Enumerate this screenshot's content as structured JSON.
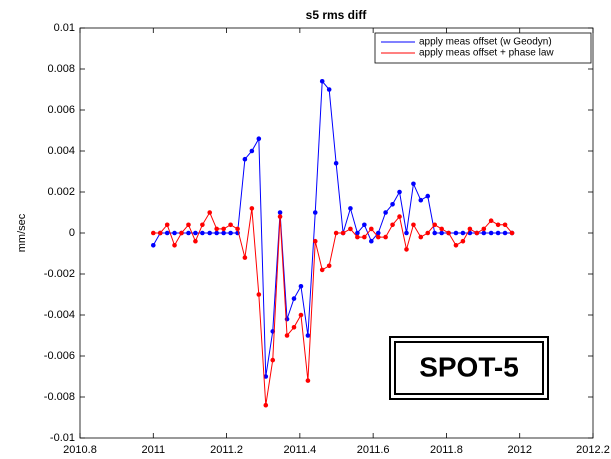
{
  "chart_data": {
    "type": "line",
    "title": "s5 rms diff",
    "y_label": "mm/sec",
    "x": [
      2011,
      2011.019,
      2011.038,
      2011.058,
      2011.077,
      2011.096,
      2011.115,
      2011.134,
      2011.154,
      2011.173,
      2011.192,
      2011.211,
      2011.23,
      2011.25,
      2011.269,
      2011.288,
      2011.307,
      2011.326,
      2011.346,
      2011.365,
      2011.384,
      2011.403,
      2011.422,
      2011.442,
      2011.461,
      2011.48,
      2011.499,
      2011.518,
      2011.538,
      2011.557,
      2011.576,
      2011.595,
      2011.614,
      2011.634,
      2011.653,
      2011.672,
      2011.691,
      2011.71,
      2011.73,
      2011.749,
      2011.768,
      2011.787,
      2011.806,
      2011.826,
      2011.845,
      2011.864,
      2011.883,
      2011.902,
      2011.922,
      2011.941,
      2011.96,
      2011.979
    ],
    "series": [
      {
        "name": "apply meas offset (w Geodyn)",
        "color": "#0000ff",
        "values": [
          -0.0006,
          0,
          0,
          0,
          0,
          0,
          0,
          0,
          0,
          0,
          0,
          0,
          0,
          0.0036,
          0.004,
          0.0046,
          -0.007,
          -0.0048,
          0.001,
          -0.0042,
          -0.0032,
          -0.0026,
          -0.005,
          0.001,
          0.0074,
          0.007,
          0.0034,
          0,
          0.0012,
          0,
          0.0004,
          -0.0004,
          0,
          0.001,
          0.0014,
          0.002,
          0,
          0.0024,
          0.0016,
          0.0018,
          0,
          0,
          0,
          0,
          0,
          0,
          0,
          0,
          0,
          0,
          0,
          0
        ]
      },
      {
        "name": "apply meas offset + phase law",
        "color": "#ff0000",
        "values": [
          0,
          0,
          0.0004,
          -0.0006,
          0,
          0.0004,
          -0.0004,
          0.0004,
          0.001,
          0.0002,
          0.0002,
          0.0004,
          0.0002,
          -0.0012,
          0.0012,
          -0.003,
          -0.0084,
          -0.0062,
          0.0008,
          -0.005,
          -0.0046,
          -0.004,
          -0.0072,
          -0.0004,
          -0.0018,
          -0.0016,
          0,
          0,
          0.0002,
          -0.0002,
          -0.0002,
          0.0002,
          -0.0002,
          -0.0002,
          0.0004,
          0.0008,
          -0.0008,
          0.0004,
          -0.0002,
          0,
          0.0004,
          0.0002,
          0,
          -0.0006,
          -0.0004,
          0.0002,
          0,
          0.0002,
          0.0006,
          0.0004,
          0.0004,
          0
        ]
      }
    ],
    "xlim": [
      2010.8,
      2012.2
    ],
    "xticks": [
      2010.8,
      2011,
      2011.2,
      2011.4,
      2011.6,
      2011.8,
      2012,
      2012.2
    ],
    "ylim": [
      -0.01,
      0.01
    ],
    "yticks": [
      -0.01,
      -0.008,
      -0.006,
      -0.004,
      -0.002,
      0,
      0.002,
      0.004,
      0.006,
      0.008,
      0.01
    ],
    "grid": false,
    "legend": "upper right",
    "annotation": "SPOT-5"
  }
}
